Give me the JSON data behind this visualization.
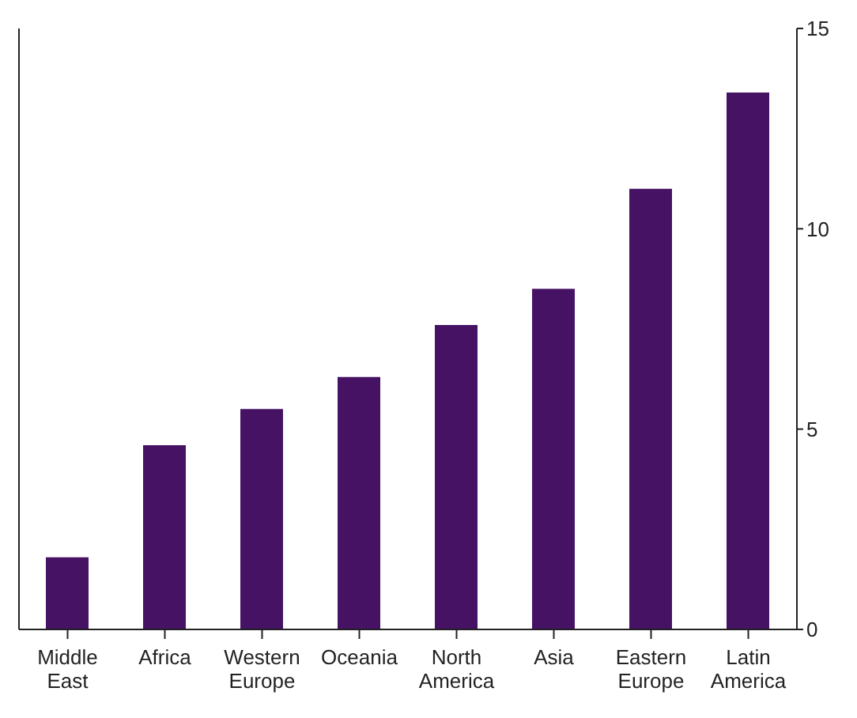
{
  "chart_data": {
    "type": "bar",
    "categories": [
      "Middle East",
      "Africa",
      "Western Europe",
      "Oceania",
      "North America",
      "Asia",
      "Eastern Europe",
      "Latin America"
    ],
    "values": [
      1.8,
      4.6,
      5.5,
      6.3,
      7.6,
      8.5,
      11.0,
      13.4
    ],
    "color": "#461264",
    "ylim": [
      0,
      15
    ],
    "yticks": [
      0,
      5,
      10,
      15
    ],
    "grid": false
  }
}
